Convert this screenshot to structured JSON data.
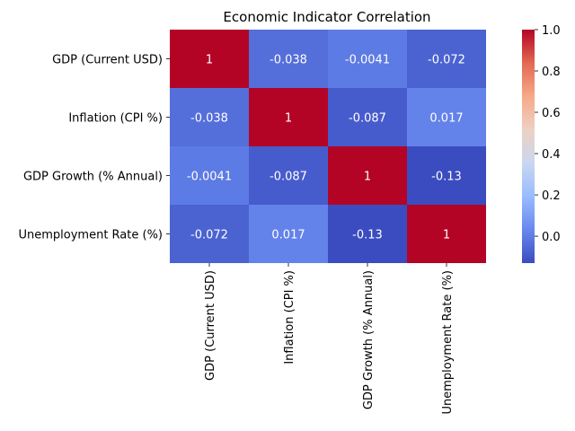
{
  "chart_data": {
    "type": "heatmap",
    "title": "Economic Indicator Correlation",
    "xlabel": "",
    "ylabel": "",
    "row_labels": [
      "GDP (Current USD)",
      "Inflation (CPI %)",
      "GDP Growth (% Annual)",
      "Unemployment Rate (%)"
    ],
    "col_labels": [
      "GDP (Current USD)",
      "Inflation (CPI %)",
      "GDP Growth (% Annual)",
      "Unemployment Rate (%)"
    ],
    "values": [
      [
        1,
        -0.038,
        -0.0041,
        -0.072
      ],
      [
        -0.038,
        1,
        -0.087,
        0.017
      ],
      [
        -0.0041,
        -0.087,
        1,
        -0.13
      ],
      [
        -0.072,
        0.017,
        -0.13,
        1
      ]
    ],
    "value_labels": [
      [
        "1",
        "-0.038",
        "-0.0041",
        "-0.072"
      ],
      [
        "-0.038",
        "1",
        "-0.087",
        "0.017"
      ],
      [
        "-0.0041",
        "-0.087",
        "1",
        "-0.13"
      ],
      [
        "-0.072",
        "0.017",
        "-0.13",
        "1"
      ]
    ],
    "colormap": "coolwarm",
    "colormap_stops": [
      "#3b4cc0",
      "#6788ee",
      "#9abbff",
      "#c9d7f0",
      "#edd1c2",
      "#f7a889",
      "#e26952",
      "#b40426"
    ],
    "vmin": -0.13,
    "vmax": 1.0,
    "colorbar_ticks": [
      0.0,
      0.2,
      0.4,
      0.6,
      0.8,
      1.0
    ],
    "colorbar_tick_labels": [
      "0.0",
      "0.2",
      "0.4",
      "0.6",
      "0.8",
      "1.0"
    ],
    "grid": false
  }
}
